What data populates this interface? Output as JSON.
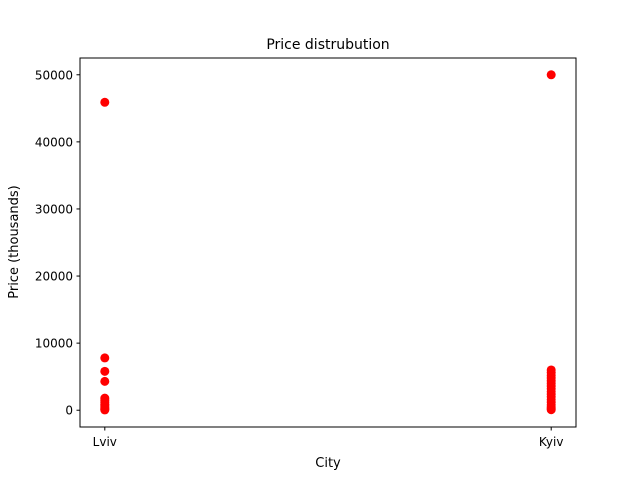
{
  "chart_data": {
    "type": "scatter",
    "title": "Price distrubution",
    "xlabel": "City",
    "ylabel": "Price (thousands)",
    "categories": [
      "Lviv",
      "Kyiv"
    ],
    "ylim": [
      -2500,
      52500
    ],
    "yticks": [
      0,
      10000,
      20000,
      30000,
      40000,
      50000
    ],
    "ytick_labels": [
      "0",
      "10000",
      "20000",
      "30000",
      "40000",
      "50000"
    ],
    "grid": false,
    "marker_color": "#ff0000",
    "series": [
      {
        "points": [
          {
            "x": "Lviv",
            "y": 45900
          },
          {
            "x": "Lviv",
            "y": 7800
          },
          {
            "x": "Lviv",
            "y": 5800
          },
          {
            "x": "Lviv",
            "y": 4300
          },
          {
            "x": "Lviv",
            "y": 1800
          },
          {
            "x": "Lviv",
            "y": 1500
          },
          {
            "x": "Lviv",
            "y": 1200
          },
          {
            "x": "Lviv",
            "y": 900
          },
          {
            "x": "Lviv",
            "y": 700
          },
          {
            "x": "Lviv",
            "y": 500
          },
          {
            "x": "Lviv",
            "y": 300
          },
          {
            "x": "Lviv",
            "y": 150
          },
          {
            "x": "Lviv",
            "y": 50
          },
          {
            "x": "Kyiv",
            "y": 50000
          },
          {
            "x": "Kyiv",
            "y": 6000
          },
          {
            "x": "Kyiv",
            "y": 5600
          },
          {
            "x": "Kyiv",
            "y": 5200
          },
          {
            "x": "Kyiv",
            "y": 4800
          },
          {
            "x": "Kyiv",
            "y": 4400
          },
          {
            "x": "Kyiv",
            "y": 4000
          },
          {
            "x": "Kyiv",
            "y": 3600
          },
          {
            "x": "Kyiv",
            "y": 3200
          },
          {
            "x": "Kyiv",
            "y": 2800
          },
          {
            "x": "Kyiv",
            "y": 2400
          },
          {
            "x": "Kyiv",
            "y": 2000
          },
          {
            "x": "Kyiv",
            "y": 1600
          },
          {
            "x": "Kyiv",
            "y": 1200
          },
          {
            "x": "Kyiv",
            "y": 800
          },
          {
            "x": "Kyiv",
            "y": 500
          },
          {
            "x": "Kyiv",
            "y": 250
          },
          {
            "x": "Kyiv",
            "y": 80
          }
        ]
      }
    ]
  }
}
